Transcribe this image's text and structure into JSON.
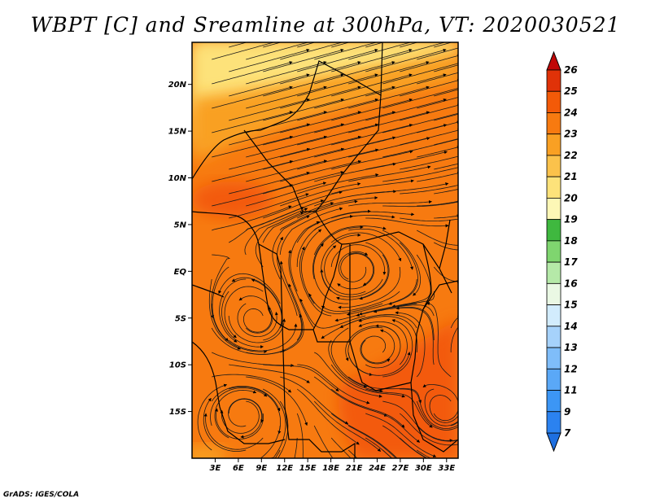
{
  "title": "WBPT [C] and Sreamline at 300hPa, VT: 2020030521",
  "credit": "GrADS: IGES/COLA",
  "map": {
    "variable": "Wet-bulb potential temperature (WBPT)",
    "units": "C",
    "level": "300hPa",
    "valid_time": "2020030521",
    "lat_labels": [
      "20N",
      "15N",
      "10N",
      "5N",
      "EQ",
      "5S",
      "10S",
      "15S"
    ],
    "lat_values": [
      20,
      15,
      10,
      5,
      0,
      -5,
      -10,
      -15
    ],
    "lon_labels": [
      "3E",
      "6E",
      "9E",
      "12E",
      "15E",
      "18E",
      "21E",
      "24E",
      "27E",
      "30E",
      "33E"
    ],
    "lon_values": [
      3,
      6,
      9,
      12,
      15,
      18,
      21,
      24,
      27,
      30,
      33
    ],
    "lat_range": [
      -20,
      24.5
    ],
    "lon_range": [
      0,
      34.5
    ]
  },
  "colorbar": {
    "labels": [
      "7",
      "9",
      "11",
      "12",
      "13",
      "14",
      "15",
      "16",
      "17",
      "18",
      "19",
      "20",
      "21",
      "22",
      "23",
      "24",
      "25",
      "26"
    ],
    "colors": [
      "#1e6fe0",
      "#2b82f0",
      "#3c96f5",
      "#5aa8f7",
      "#7fbdf9",
      "#a6d2fb",
      "#d2ecfd",
      "#eaf8e4",
      "#b5e9a8",
      "#7fd56f",
      "#3fb83f",
      "#fdf7b6",
      "#fde27a",
      "#fbc24b",
      "#f9a023",
      "#f77a10",
      "#f35a08",
      "#e03208",
      "#c00707"
    ]
  }
}
